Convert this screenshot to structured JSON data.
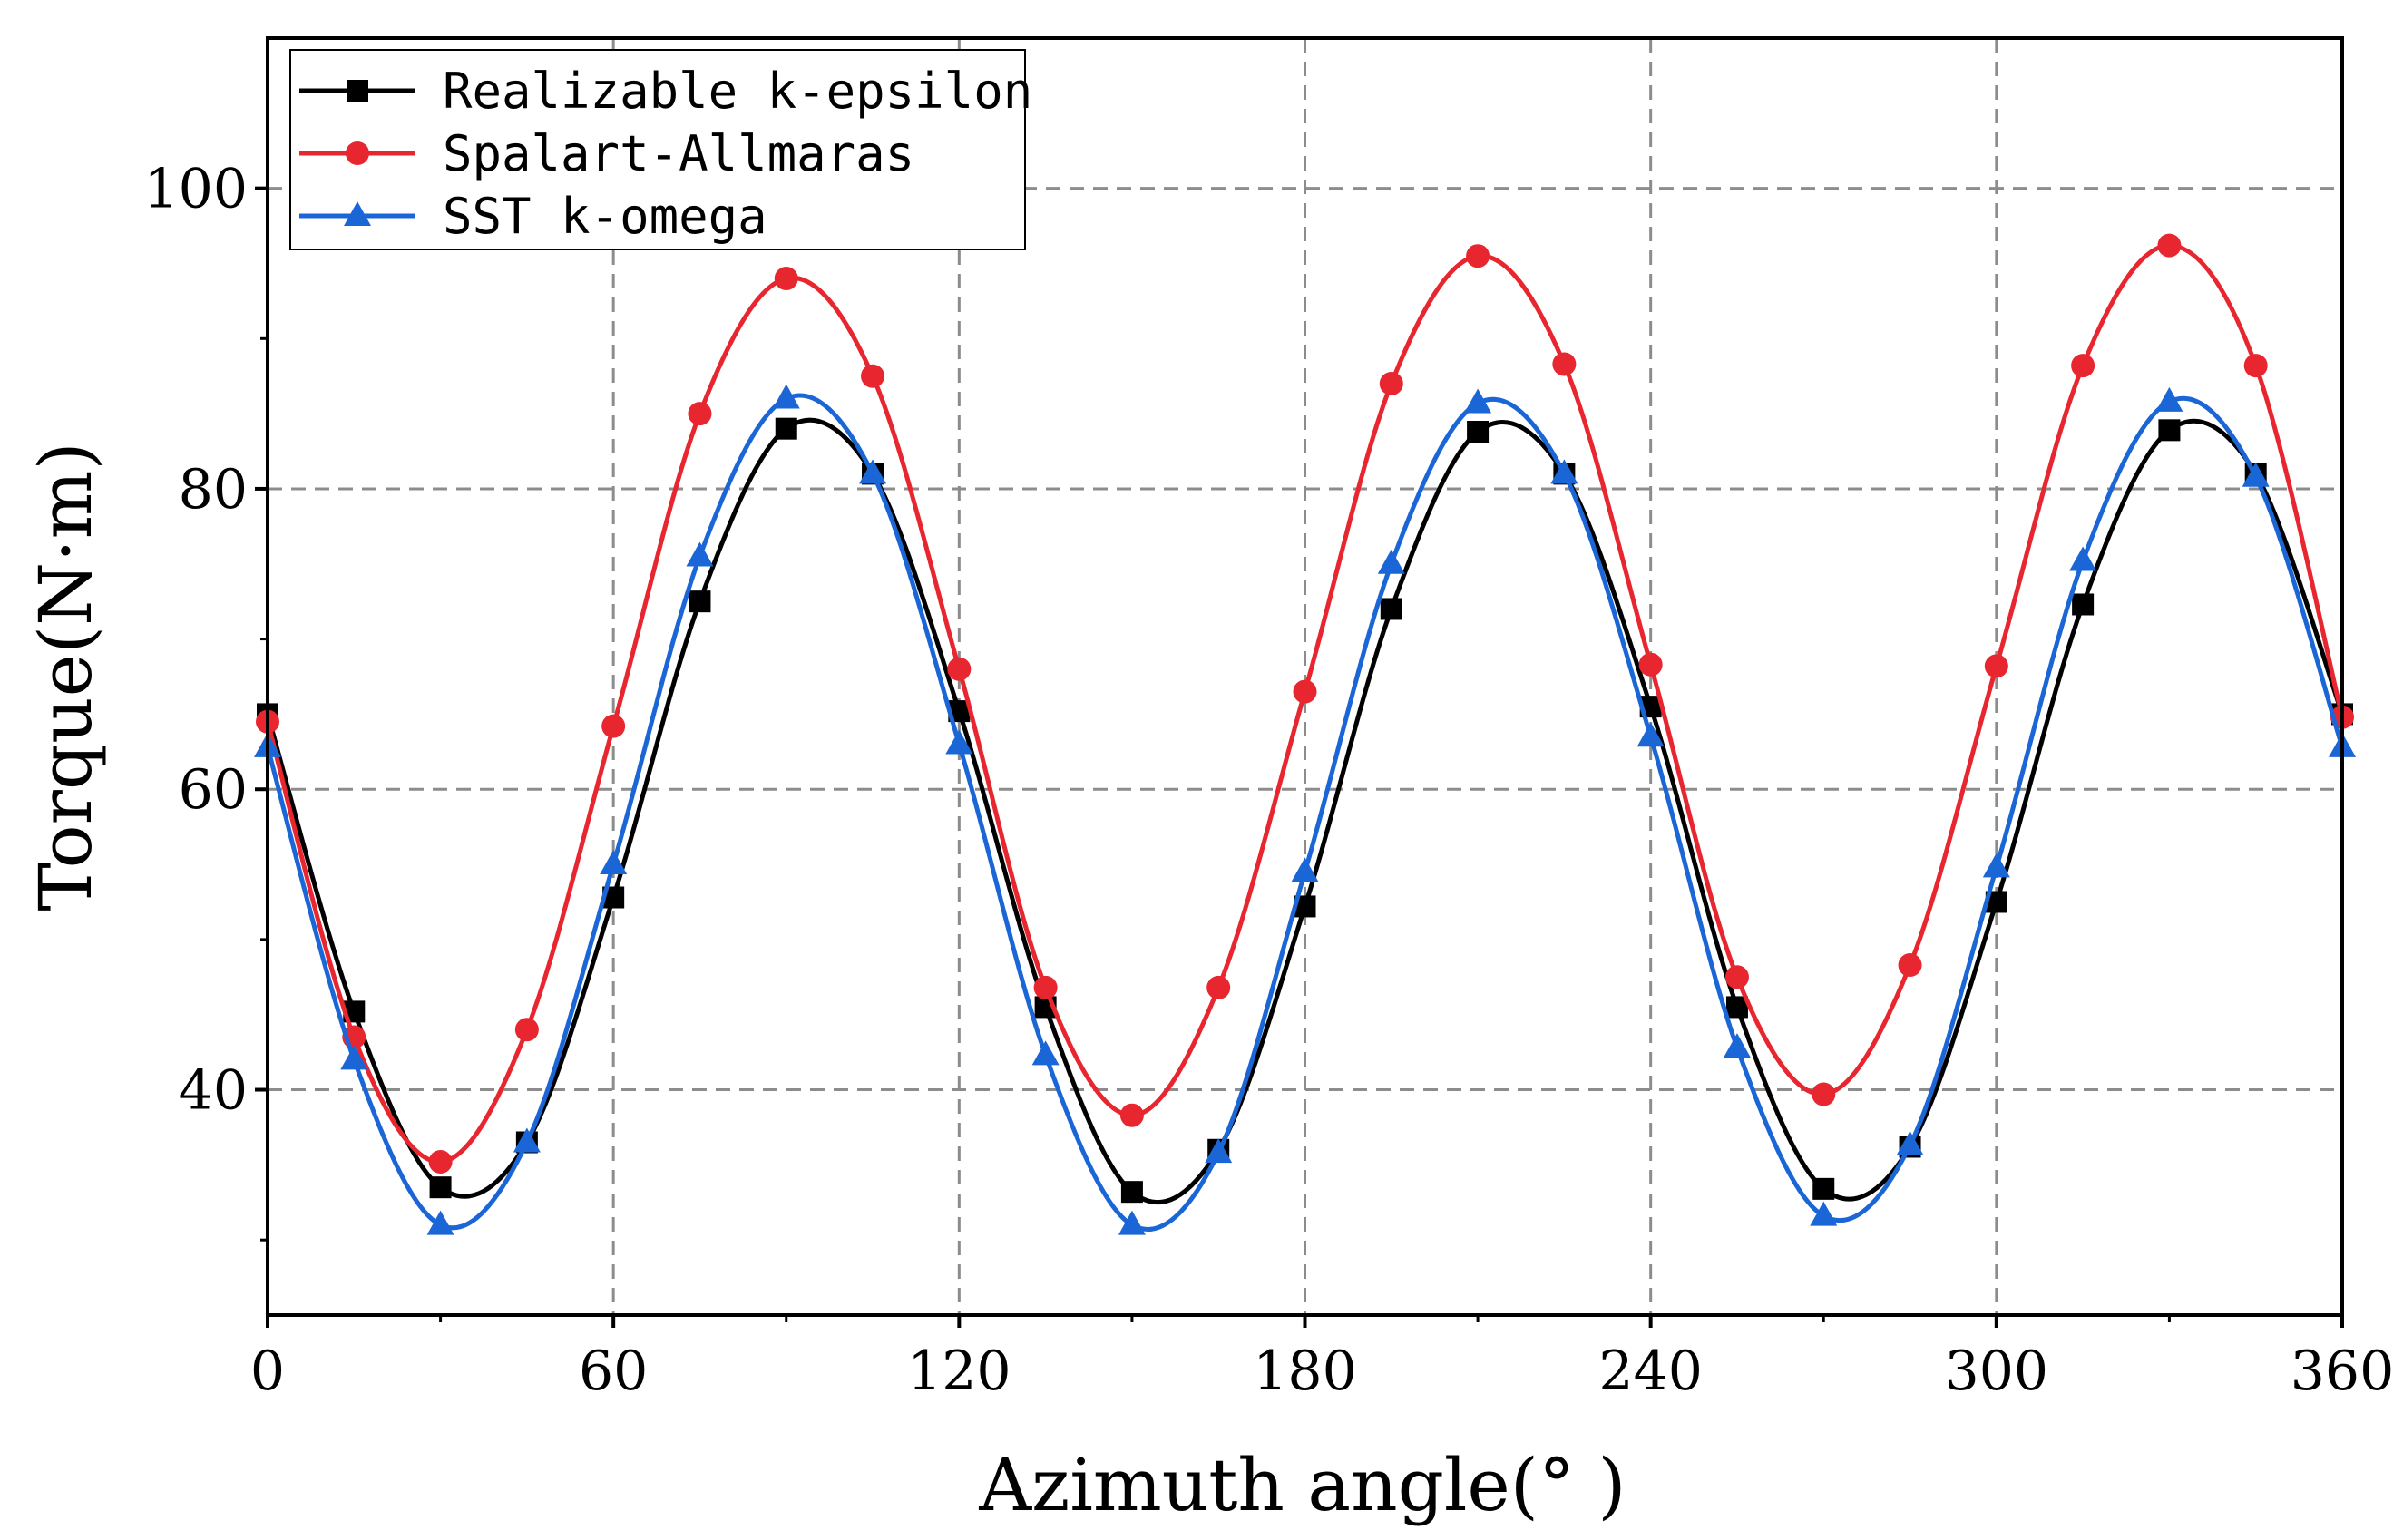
{
  "chart_data": {
    "type": "line",
    "title": "",
    "xlabel": "Azimuth angle(°  )",
    "ylabel": "Torque(N·m)",
    "xlim": [
      0,
      360
    ],
    "ylim": [
      25,
      110
    ],
    "xticks": [
      0,
      60,
      120,
      180,
      240,
      300,
      360
    ],
    "xtick_labels": [
      "0",
      "60",
      "120",
      "180",
      "240",
      "300",
      "360"
    ],
    "yticks": [
      40,
      60,
      80,
      100
    ],
    "ytick_labels": [
      "40",
      "60",
      "80",
      "100"
    ],
    "grid": true,
    "legend_position": "top-left",
    "x": [
      0,
      15,
      30,
      45,
      60,
      75,
      90,
      105,
      120,
      135,
      150,
      165,
      180,
      195,
      210,
      225,
      240,
      255,
      270,
      285,
      300,
      315,
      330,
      345,
      360
    ],
    "series": [
      {
        "name": "Realizable k-epsilon",
        "color": "#000000",
        "marker": "square",
        "values": [
          65.0,
          45.2,
          33.5,
          36.5,
          52.8,
          72.5,
          84.0,
          81.0,
          65.2,
          45.5,
          33.2,
          36.0,
          52.2,
          72.0,
          83.8,
          81.0,
          65.5,
          45.5,
          33.4,
          36.2,
          52.5,
          72.3,
          83.9,
          81.0,
          65.0
        ]
      },
      {
        "name": "Spalart-Allmaras",
        "color": "#e8262f",
        "marker": "circle",
        "values": [
          64.5,
          43.5,
          35.2,
          44.0,
          64.2,
          85.0,
          94.0,
          87.5,
          68.0,
          46.8,
          38.3,
          46.8,
          66.5,
          87.0,
          95.5,
          88.3,
          68.3,
          47.5,
          39.7,
          48.3,
          68.2,
          88.2,
          96.2,
          88.2,
          64.8
        ]
      },
      {
        "name": "SST k-omega",
        "color": "#1b66d6",
        "marker": "triangle",
        "values": [
          62.8,
          42.0,
          31.0,
          36.5,
          55.0,
          75.5,
          86.0,
          81.0,
          63.0,
          42.3,
          31.0,
          35.8,
          54.5,
          75.0,
          85.7,
          81.0,
          63.5,
          42.8,
          31.6,
          36.3,
          54.8,
          75.2,
          85.8,
          80.8,
          62.8
        ]
      }
    ]
  }
}
